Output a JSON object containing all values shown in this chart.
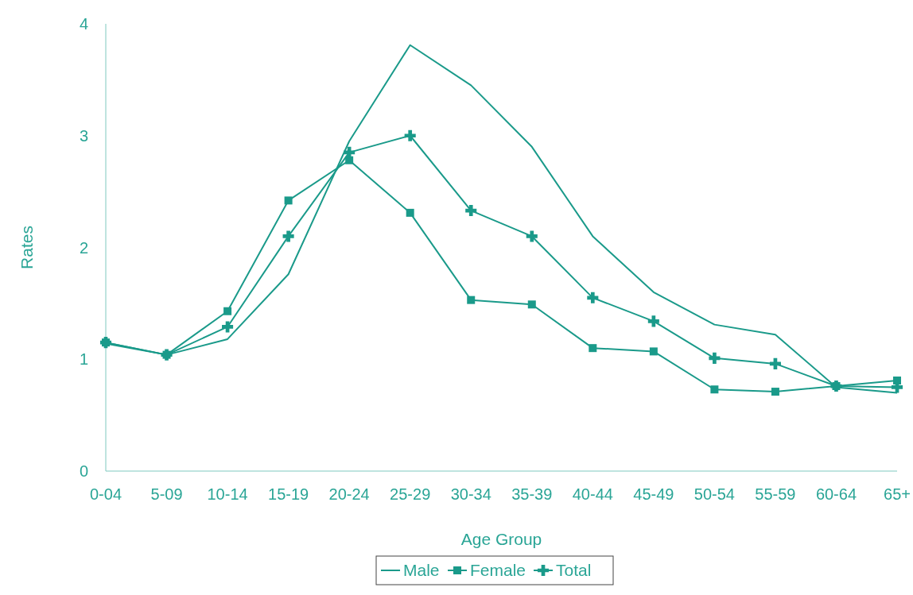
{
  "chart_data": {
    "type": "line",
    "xlabel": "Age Group",
    "ylabel": "Rates",
    "categories": [
      "0-04",
      "5-09",
      "10-14",
      "15-19",
      "20-24",
      "25-29",
      "30-34",
      "35-39",
      "40-44",
      "45-49",
      "50-54",
      "55-59",
      "60-64",
      "65+"
    ],
    "series": [
      {
        "name": "Male",
        "color": "#1a9a8a",
        "marker": "none",
        "values": [
          1.14,
          1.04,
          1.18,
          1.76,
          2.95,
          3.81,
          3.45,
          2.9,
          2.1,
          1.6,
          1.31,
          1.22,
          0.75,
          0.7
        ]
      },
      {
        "name": "Female",
        "color": "#1a9a8a",
        "marker": "square",
        "values": [
          1.15,
          1.04,
          1.43,
          2.42,
          2.78,
          2.31,
          1.53,
          1.49,
          1.1,
          1.07,
          0.73,
          0.71,
          0.76,
          0.81
        ]
      },
      {
        "name": "Total",
        "color": "#1a9a8a",
        "marker": "cross",
        "values": [
          1.15,
          1.04,
          1.29,
          2.1,
          2.85,
          3.0,
          2.33,
          2.1,
          1.55,
          1.34,
          1.01,
          0.96,
          0.76,
          0.75
        ]
      }
    ],
    "ylim": [
      0,
      4
    ],
    "yticks": [
      0,
      1,
      2,
      3,
      4
    ],
    "grid": false,
    "legend": "bottom"
  }
}
